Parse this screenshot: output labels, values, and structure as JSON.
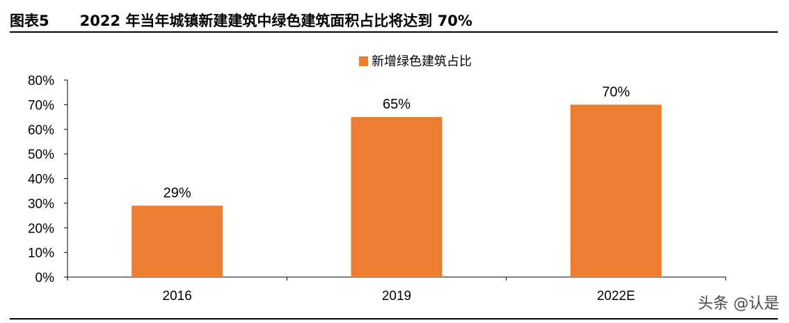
{
  "header": {
    "figure_label": "图表5",
    "title": "2022 年当年城镇新建建筑中绿色建筑面积占比将达到 70%"
  },
  "watermark": "头条 @认是",
  "chart_data": {
    "type": "bar",
    "categories": [
      "2016",
      "2019",
      "2022E"
    ],
    "series": [
      {
        "name": "新增绿色建筑占比",
        "values": [
          29,
          65,
          70
        ],
        "value_labels": [
          "29%",
          "65%",
          "70%"
        ],
        "color": "#ED7D31"
      }
    ],
    "ylim": [
      0,
      80
    ],
    "yticks": [
      0,
      10,
      20,
      30,
      40,
      50,
      60,
      70,
      80
    ],
    "ytick_labels": [
      "0%",
      "10%",
      "20%",
      "30%",
      "40%",
      "50%",
      "60%",
      "70%",
      "80%"
    ],
    "xlabel": "",
    "ylabel": "",
    "grid": false,
    "legend_position": "top-center"
  }
}
